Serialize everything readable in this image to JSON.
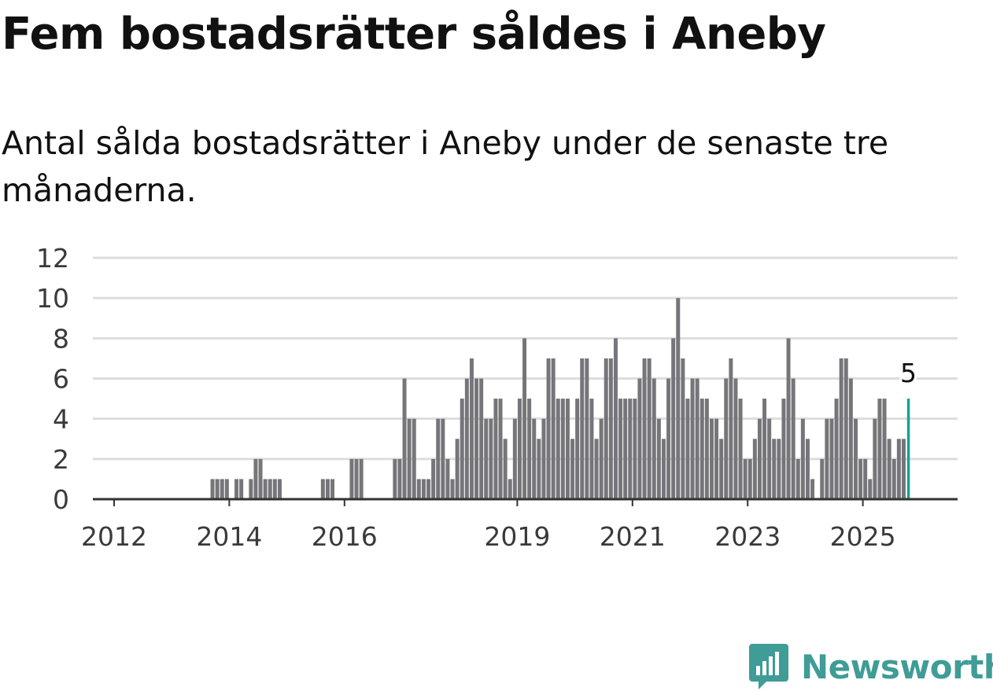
{
  "title": "Fem bostadsrätter såldes i Aneby",
  "subtitle": "Antal sålda bostadsrätter i Aneby under de senaste tre månaderna.",
  "brand": {
    "name": "Newsworthy",
    "icon": "newsworthy-logo-icon",
    "color": "#3f9c96"
  },
  "colors": {
    "bar": "#76757a",
    "highlight": "#1a9e94",
    "grid": "#dddddd",
    "axis": "#333333"
  },
  "chart_data": {
    "type": "bar",
    "x_unit": "month",
    "x_start": "2011-08",
    "x_end": "2025-04",
    "values": [
      0,
      0,
      0,
      0,
      0,
      0,
      0,
      0,
      0,
      0,
      0,
      0,
      0,
      0,
      0,
      0,
      0,
      0,
      0,
      0,
      0,
      0,
      0,
      0,
      0,
      1,
      1,
      1,
      1,
      0,
      1,
      1,
      0,
      1,
      2,
      2,
      1,
      1,
      1,
      1,
      0,
      0,
      0,
      0,
      0,
      0,
      0,
      0,
      1,
      1,
      1,
      0,
      0,
      0,
      2,
      2,
      2,
      0,
      0,
      0,
      0,
      0,
      0,
      2,
      2,
      6,
      4,
      4,
      1,
      1,
      1,
      2,
      4,
      4,
      2,
      1,
      3,
      5,
      6,
      7,
      6,
      6,
      4,
      4,
      5,
      5,
      3,
      1,
      4,
      5,
      8,
      5,
      4,
      3,
      4,
      7,
      7,
      5,
      5,
      5,
      3,
      5,
      7,
      7,
      5,
      3,
      4,
      7,
      7,
      8,
      5,
      5,
      5,
      5,
      6,
      7,
      7,
      6,
      4,
      3,
      6,
      8,
      10,
      7,
      5,
      6,
      6,
      5,
      5,
      4,
      4,
      3,
      6,
      7,
      6,
      5,
      2,
      2,
      3,
      4,
      5,
      4,
      3,
      3,
      5,
      8,
      6,
      2,
      4,
      3,
      1,
      0,
      2,
      4,
      4,
      5,
      7,
      7,
      6,
      4,
      2,
      2,
      1,
      4,
      5,
      5,
      3,
      2,
      3,
      3,
      5
    ],
    "highlight_last": true,
    "callout": "5",
    "x_ticks": [
      "2012",
      "2014",
      "2016",
      "2019",
      "2021",
      "2023",
      "2025"
    ],
    "y_ticks": [
      "0",
      "2",
      "4",
      "6",
      "8",
      "10",
      "12"
    ],
    "ylim": [
      0,
      12
    ],
    "xlabel": "",
    "ylabel": "",
    "grid": true
  }
}
